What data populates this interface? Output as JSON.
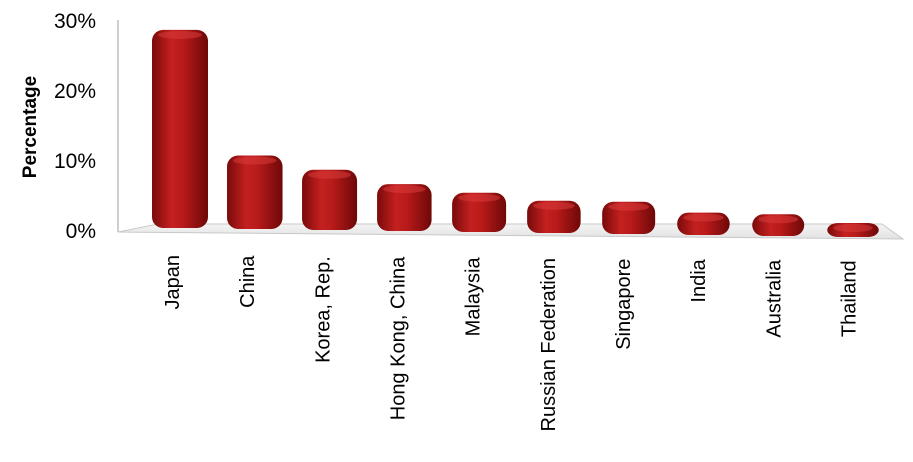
{
  "chart_data": {
    "type": "bar",
    "title": "",
    "xlabel": "",
    "ylabel": "Percentage",
    "ylim": [
      0,
      30
    ],
    "yticks": [
      "0%",
      "10%",
      "20%",
      "30%"
    ],
    "categories": [
      "Japan",
      "China",
      "Korea, Rep.",
      "Hong Kong, China",
      "Malaysia",
      "Russian Federation",
      "Singapore",
      "India",
      "Australia",
      "Thailand"
    ],
    "values": [
      28.3,
      10.5,
      8.6,
      6.7,
      5.6,
      4.6,
      4.6,
      3.2,
      3.1,
      2.0
    ],
    "bar_color": "#b01818",
    "grid": false,
    "style": "3d-perspective"
  }
}
